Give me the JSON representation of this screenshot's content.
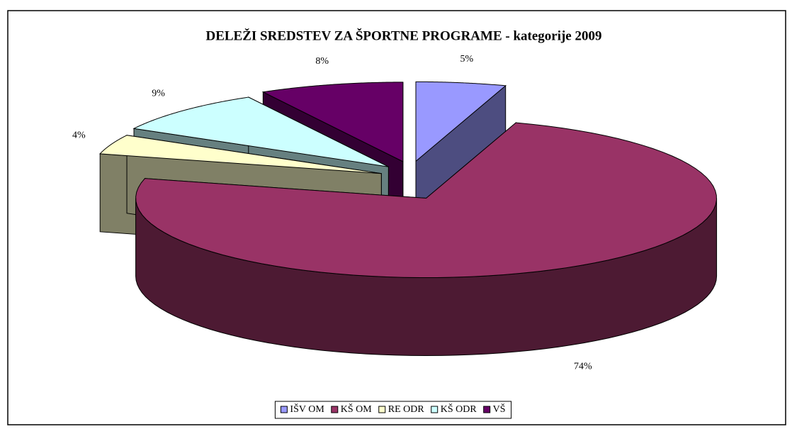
{
  "chart_data": {
    "type": "pie3d",
    "title": "DELEŽI SREDSTEV ZA ŠPORTNE PROGRAME - kategorije 2009",
    "categories": [
      "IŠV OM",
      "KŠ OM",
      "RE ODR",
      "KŠ ODR",
      "VŠ"
    ],
    "values": [
      5,
      74,
      4,
      9,
      8
    ],
    "value_labels": [
      "5%",
      "74%",
      "4%",
      "9%",
      "8%"
    ],
    "colors": [
      "#9999ff",
      "#993366",
      "#ffffcc",
      "#ccffff",
      "#660066"
    ],
    "legend": "bottom"
  }
}
